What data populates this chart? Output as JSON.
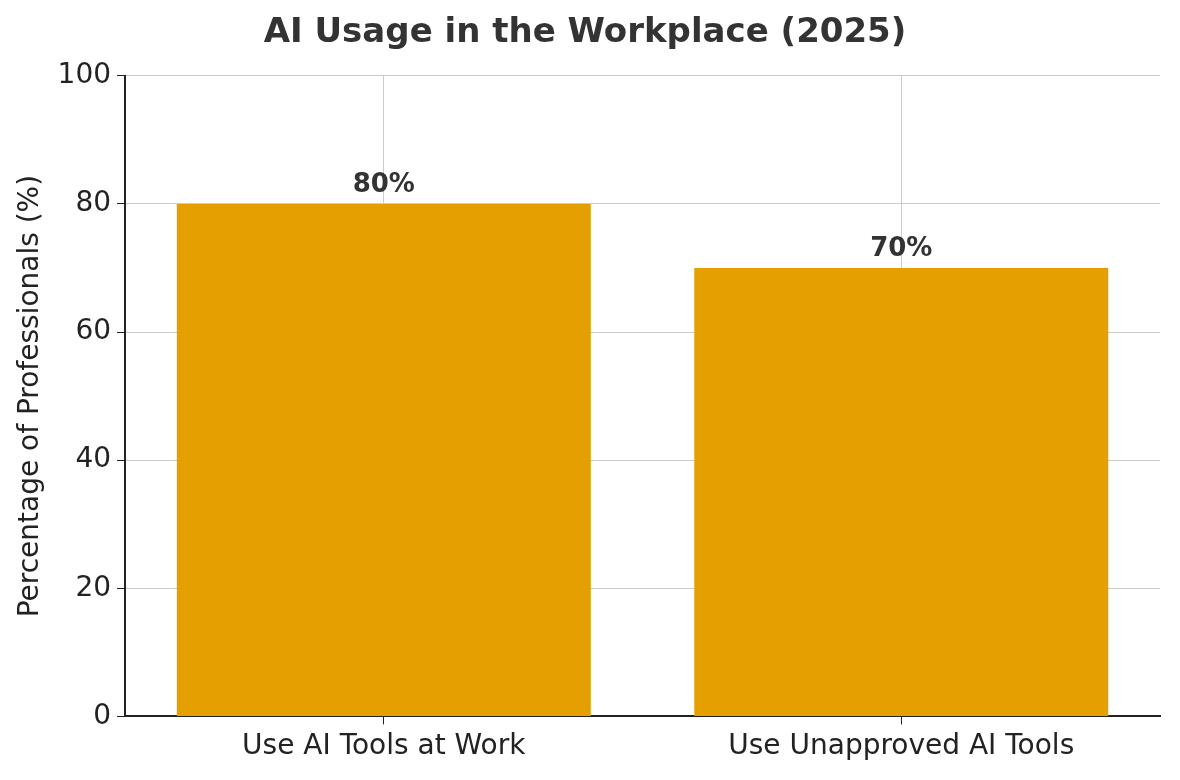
{
  "chart_data": {
    "type": "bar",
    "title": "AI Usage in the Workplace (2025)",
    "ylabel": "Percentage of Professionals (%)",
    "categories": [
      "Use AI Tools at Work",
      "Use Unapproved AI Tools"
    ],
    "values": [
      80,
      70
    ],
    "color": "#e69f00",
    "value_labels": [
      "80%",
      "70%"
    ],
    "ylim": [
      0,
      100
    ],
    "yticks": [
      0,
      20,
      40,
      60,
      80,
      100
    ],
    "grid": true,
    "legend": false
  }
}
